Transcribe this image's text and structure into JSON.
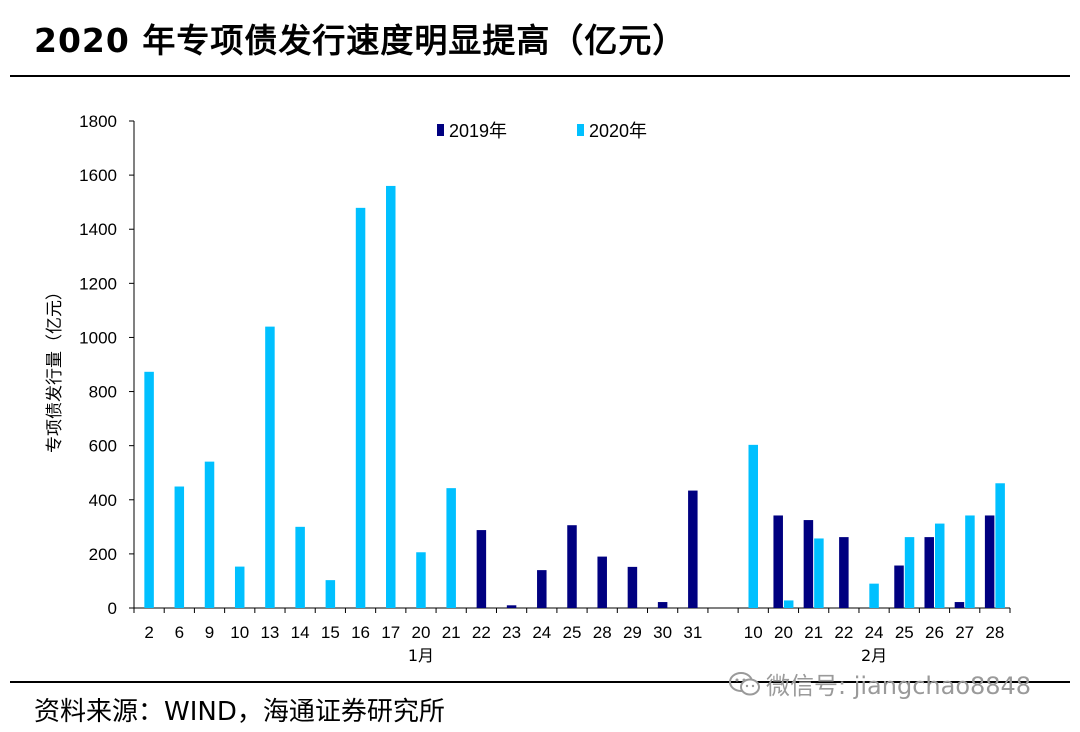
{
  "title": "2020 年专项债发行速度明显提高（亿元）",
  "source": "资料来源：WIND，海通证券研究所",
  "watermark": "微信号: jiangchao8848",
  "chart_data": {
    "type": "bar",
    "title": "",
    "ylabel": "专项债发行量（亿元）",
    "xlabel": "",
    "ylim": [
      0,
      1800
    ],
    "yticks": [
      0,
      200,
      400,
      600,
      800,
      1000,
      1200,
      1400,
      1600,
      1800
    ],
    "categories": [
      "2",
      "6",
      "9",
      "10",
      "13",
      "14",
      "15",
      "16",
      "17",
      "20",
      "21",
      "22",
      "23",
      "24",
      "25",
      "28",
      "29",
      "30",
      "31",
      "",
      "10",
      "20",
      "21",
      "22",
      "24",
      "25",
      "26",
      "27",
      "28"
    ],
    "month_groups": [
      {
        "label": "1月",
        "start": 0,
        "end": 18
      },
      {
        "label": "2月",
        "start": 20,
        "end": 28
      }
    ],
    "legend": [
      "2019年",
      "2020年"
    ],
    "legend_position": "top-center",
    "colors": {
      "2019": "#000080",
      "2020": "#00c0ff"
    },
    "series": [
      {
        "name": "2019年",
        "values": [
          0,
          0,
          0,
          0,
          0,
          0,
          0,
          0,
          0,
          0,
          0,
          288,
          10,
          140,
          306,
          190,
          152,
          22,
          434,
          0,
          0,
          342,
          325,
          262,
          0,
          157,
          262,
          22,
          342
        ]
      },
      {
        "name": "2020年",
        "values": [
          873,
          449,
          541,
          153,
          1040,
          300,
          103,
          1479,
          1560,
          206,
          443,
          0,
          0,
          0,
          0,
          0,
          0,
          0,
          0,
          0,
          603,
          28,
          257,
          0,
          90,
          262,
          312,
          342,
          461
        ]
      }
    ]
  }
}
